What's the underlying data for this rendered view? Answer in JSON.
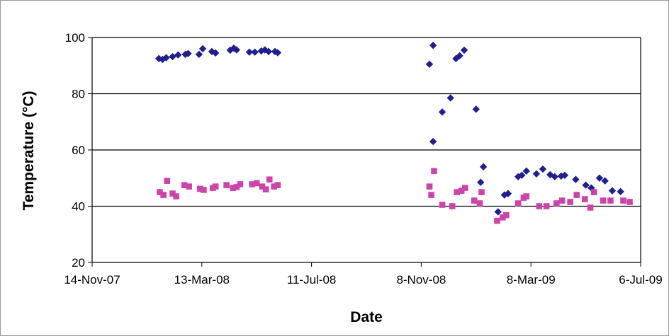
{
  "chart_data": {
    "type": "scatter",
    "title": "",
    "xlabel": "Date",
    "ylabel": "Temperature (°C)",
    "ylim": [
      20,
      100
    ],
    "xlim": [
      "2007-11-14",
      "2009-07-06"
    ],
    "x_ticks": [
      "14-Nov-07",
      "13-Mar-08",
      "11-Jul-08",
      "8-Nov-08",
      "8-Mar-09",
      "6-Jul-09"
    ],
    "y_ticks": [
      20,
      40,
      60,
      80,
      100
    ],
    "grid": "horizontal",
    "legend": "none",
    "series": [
      {
        "color": "#1f1f8f",
        "marker": "diamond",
        "points": [
          [
            "2008-01-26",
            92.5
          ],
          [
            "2008-01-30",
            92.2
          ],
          [
            "2008-02-03",
            92.8
          ],
          [
            "2008-02-10",
            93.2
          ],
          [
            "2008-02-16",
            93.8
          ],
          [
            "2008-02-24",
            94.0
          ],
          [
            "2008-02-27",
            94.3
          ],
          [
            "2008-03-10",
            94.0
          ],
          [
            "2008-03-14",
            96.0
          ],
          [
            "2008-03-24",
            95.0
          ],
          [
            "2008-03-28",
            94.5
          ],
          [
            "2008-04-13",
            95.5
          ],
          [
            "2008-04-17",
            96.2
          ],
          [
            "2008-04-20",
            95.6
          ],
          [
            "2008-05-04",
            94.8
          ],
          [
            "2008-05-10",
            94.8
          ],
          [
            "2008-05-17",
            95.2
          ],
          [
            "2008-05-21",
            95.6
          ],
          [
            "2008-05-25",
            95.0
          ],
          [
            "2008-06-01",
            95.0
          ],
          [
            "2008-06-04",
            94.6
          ],
          [
            "2008-11-17",
            90.5
          ],
          [
            "2008-11-21",
            97.2
          ],
          [
            "2008-11-21",
            63.0
          ],
          [
            "2008-12-01",
            73.5
          ],
          [
            "2008-12-10",
            78.5
          ],
          [
            "2008-12-16",
            92.5
          ],
          [
            "2008-12-20",
            93.5
          ],
          [
            "2008-12-25",
            95.5
          ],
          [
            "2009-01-07",
            74.5
          ],
          [
            "2009-01-12",
            48.5
          ],
          [
            "2009-01-15",
            54.0
          ],
          [
            "2009-01-31",
            38.0
          ],
          [
            "2009-02-07",
            44.0
          ],
          [
            "2009-02-11",
            44.5
          ],
          [
            "2009-02-22",
            50.5
          ],
          [
            "2009-02-26",
            51.0
          ],
          [
            "2009-03-03",
            52.5
          ],
          [
            "2009-03-14",
            51.5
          ],
          [
            "2009-03-21",
            53.2
          ],
          [
            "2009-03-29",
            51.2
          ],
          [
            "2009-04-03",
            50.5
          ],
          [
            "2009-04-10",
            50.7
          ],
          [
            "2009-04-14",
            51.0
          ],
          [
            "2009-04-26",
            49.5
          ],
          [
            "2009-05-07",
            47.5
          ],
          [
            "2009-05-13",
            46.5
          ],
          [
            "2009-05-22",
            50.0
          ],
          [
            "2009-05-28",
            49.0
          ],
          [
            "2009-06-05",
            45.5
          ],
          [
            "2009-06-14",
            45.2
          ]
        ]
      },
      {
        "color": "#cc44aa",
        "marker": "square",
        "points": [
          [
            "2008-01-27",
            45.0
          ],
          [
            "2008-01-31",
            44.0
          ],
          [
            "2008-02-04",
            49.0
          ],
          [
            "2008-02-10",
            44.5
          ],
          [
            "2008-02-14",
            43.5
          ],
          [
            "2008-02-23",
            47.5
          ],
          [
            "2008-02-28",
            47.0
          ],
          [
            "2008-03-11",
            46.2
          ],
          [
            "2008-03-15",
            45.8
          ],
          [
            "2008-03-25",
            46.5
          ],
          [
            "2008-03-28",
            47.0
          ],
          [
            "2008-04-09",
            47.5
          ],
          [
            "2008-04-16",
            46.5
          ],
          [
            "2008-04-20",
            46.8
          ],
          [
            "2008-04-24",
            47.8
          ],
          [
            "2008-05-07",
            47.8
          ],
          [
            "2008-05-12",
            48.2
          ],
          [
            "2008-05-18",
            47.0
          ],
          [
            "2008-05-22",
            46.0
          ],
          [
            "2008-05-26",
            49.5
          ],
          [
            "2008-05-31",
            47.0
          ],
          [
            "2008-06-04",
            47.5
          ],
          [
            "2008-11-17",
            47.0
          ],
          [
            "2008-11-19",
            44.0
          ],
          [
            "2008-11-22",
            52.5
          ],
          [
            "2008-12-01",
            40.5
          ],
          [
            "2008-12-12",
            40.0
          ],
          [
            "2008-12-17",
            45.0
          ],
          [
            "2008-12-22",
            45.5
          ],
          [
            "2008-12-26",
            46.5
          ],
          [
            "2009-01-05",
            42.0
          ],
          [
            "2009-01-11",
            41.0
          ],
          [
            "2009-01-13",
            45.0
          ],
          [
            "2009-01-30",
            34.8
          ],
          [
            "2009-02-05",
            36.0
          ],
          [
            "2009-02-09",
            36.8
          ],
          [
            "2009-02-22",
            41.0
          ],
          [
            "2009-02-28",
            43.0
          ],
          [
            "2009-03-03",
            43.5
          ],
          [
            "2009-03-17",
            40.0
          ],
          [
            "2009-03-25",
            40.0
          ],
          [
            "2009-04-05",
            41.0
          ],
          [
            "2009-04-11",
            42.0
          ],
          [
            "2009-04-20",
            41.5
          ],
          [
            "2009-04-27",
            44.0
          ],
          [
            "2009-05-06",
            42.5
          ],
          [
            "2009-05-12",
            39.5
          ],
          [
            "2009-05-16",
            45.0
          ],
          [
            "2009-05-26",
            42.0
          ],
          [
            "2009-06-03",
            42.0
          ],
          [
            "2009-06-17",
            42.0
          ],
          [
            "2009-06-24",
            41.5
          ]
        ]
      }
    ]
  }
}
